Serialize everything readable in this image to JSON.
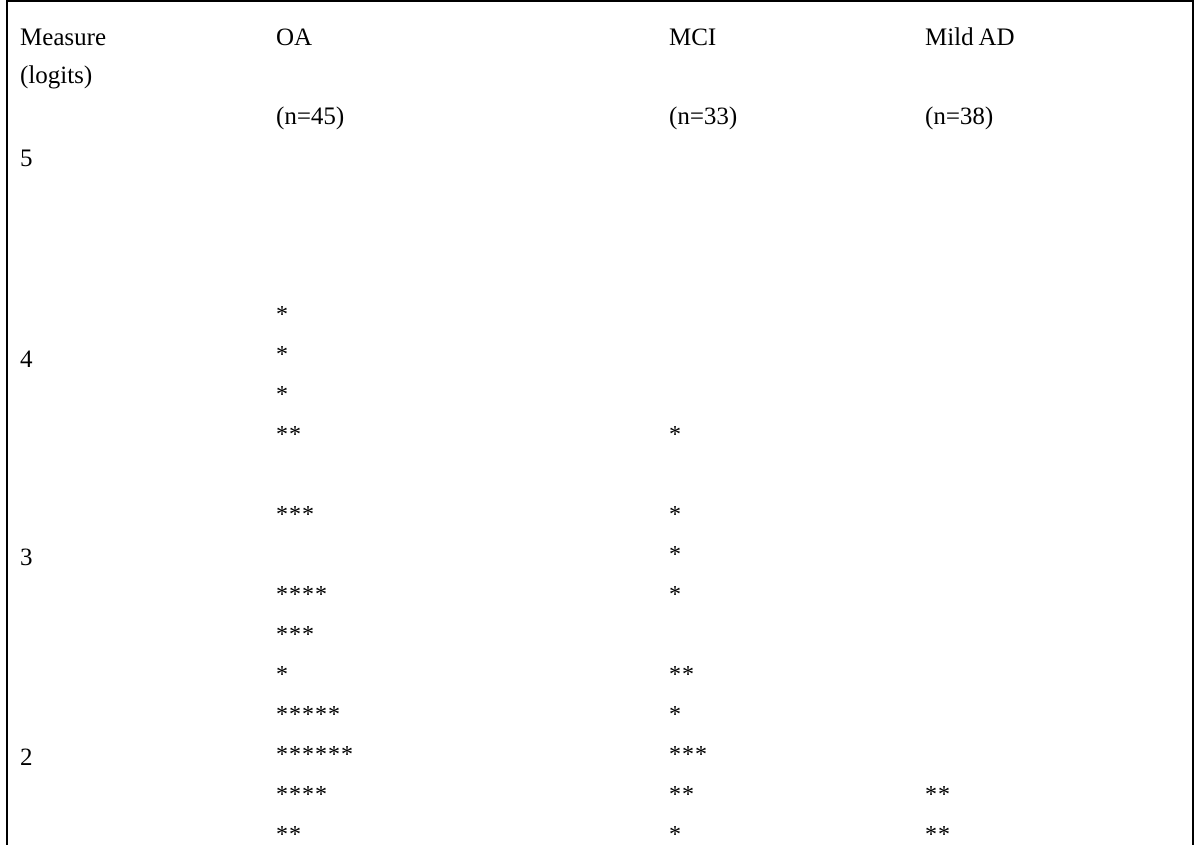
{
  "header": {
    "measure_line1": "Measure",
    "measure_line2": "(logits)",
    "groups": [
      {
        "name": "OA",
        "n": "(n=45)"
      },
      {
        "name": "MCI",
        "n": "(n=33)"
      },
      {
        "name": "Mild AD",
        "n": "(n=38)"
      }
    ]
  },
  "scale": [
    "5",
    "4",
    "3",
    "2"
  ],
  "rows": [
    {
      "oa": "*",
      "mci": "",
      "ad": ""
    },
    {
      "oa": "*",
      "mci": "",
      "ad": ""
    },
    {
      "oa": "*",
      "mci": "",
      "ad": ""
    },
    {
      "oa": "**",
      "mci": "*",
      "ad": ""
    },
    {
      "oa": "***",
      "mci": "*",
      "ad": ""
    },
    {
      "oa": "",
      "mci": "*",
      "ad": ""
    },
    {
      "oa": "****",
      "mci": "*",
      "ad": ""
    },
    {
      "oa": "***",
      "mci": "",
      "ad": ""
    },
    {
      "oa": "*",
      "mci": "**",
      "ad": ""
    },
    {
      "oa": "*****",
      "mci": "*",
      "ad": ""
    },
    {
      "oa": "******",
      "mci": "***",
      "ad": ""
    },
    {
      "oa": "****",
      "mci": "**",
      "ad": "**"
    },
    {
      "oa": "**",
      "mci": "*",
      "ad": "**"
    }
  ]
}
